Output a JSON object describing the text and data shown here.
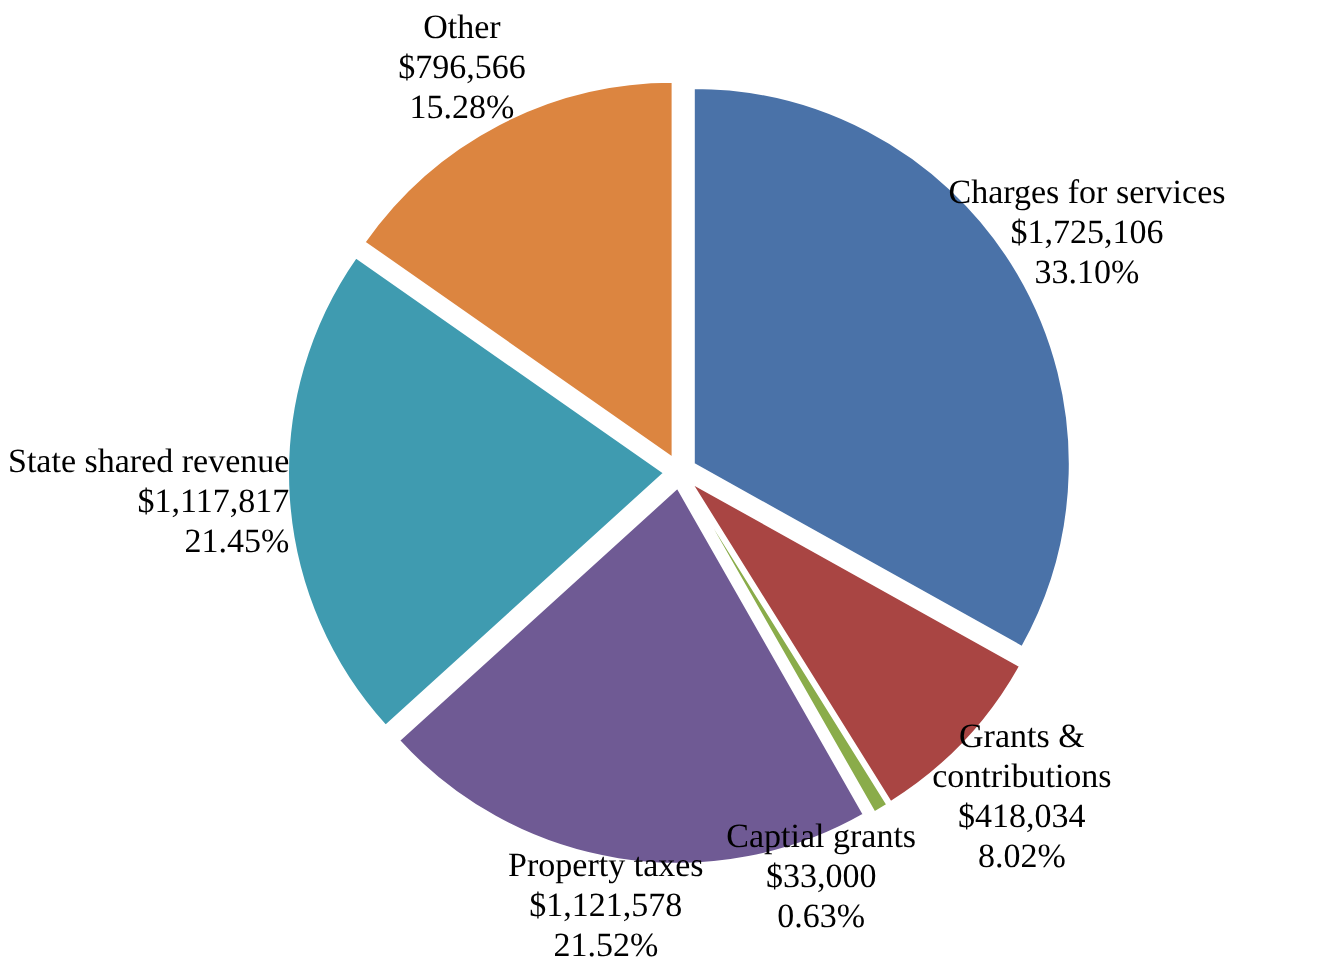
{
  "chart_data": {
    "type": "pie",
    "categories": [
      "Charges for services",
      "Grants & contributions",
      "Captial grants",
      "Property taxes",
      "State shared revenue",
      "Other"
    ],
    "values": [
      1725106,
      418034,
      33000,
      1121578,
      1117817,
      796566
    ],
    "value_labels": [
      "$1,725,106\n33.10%",
      "$418,034\n8.02%",
      "$33,000\n0.63%",
      "$1,121,578\n21.52%",
      "$1,117,817\n21.45%",
      "$796,566\n15.28%"
    ],
    "colors": [
      "#4a72a8",
      "#a94543",
      "#8aac4a",
      "#6f5a94",
      "#3f9bb0",
      "#dc8540"
    ],
    "legend": false
  }
}
